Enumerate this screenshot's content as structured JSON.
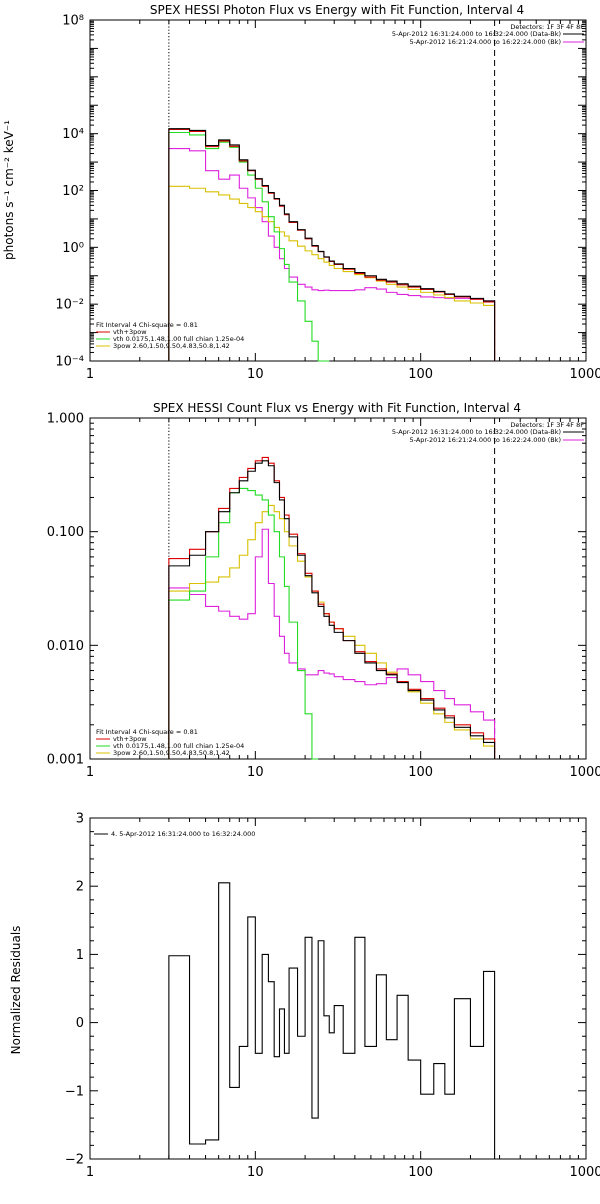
{
  "colors": {
    "total": "#000000",
    "model": "#dd0000",
    "vth": "#22dd22",
    "pow": "#d8c000",
    "bk": "#dd22dd"
  },
  "chart_data": [
    {
      "type": "line",
      "title": "SPEX HESSI Photon Flux vs Energy with Fit Function, Interval 4",
      "ylabel": "photons s⁻¹ cm⁻² keV⁻¹",
      "xlabel": "",
      "xscale": "log",
      "yscale": "log",
      "xlim": [
        1,
        1000
      ],
      "ylim": [
        0.0001,
        100000000
      ],
      "x_ticks": [
        1,
        10,
        100,
        1000
      ],
      "x_tick_labels": [
        "1",
        "10",
        "100",
        "1000"
      ],
      "y_ticks": [
        0.0001,
        0.01,
        1,
        100,
        10000,
        100000000
      ],
      "y_tick_labels": [
        "10⁻⁴",
        "10⁻²",
        "10⁰",
        "10²",
        "10⁴",
        "10⁸"
      ],
      "header_lines": [
        "Detectors: 1F 3F 4F 8F",
        "5-Apr-2012 16:31:24.000 to 16:32:24.000 (Data-Bk)",
        "5-Apr-2012 16:21:24.000 to 16:22:24.000 (Bk)"
      ],
      "legend_lines": [
        "Fit Interval  4    Chi-square = 0.81",
        "vth+3pow",
        "vth  0.0175,1.48,1.00   full chian 1.25e-04",
        "3pow  2.60,1.50,9.50,4.83,50.8,1.42"
      ],
      "vlines": [
        {
          "x": 3,
          "style": "dotted"
        },
        {
          "x": 280,
          "style": "dashed"
        }
      ],
      "edges": [
        3,
        4,
        5,
        6,
        7,
        8,
        9,
        10,
        11,
        12,
        13,
        14,
        15,
        16,
        18,
        20,
        22,
        24,
        26,
        28,
        30,
        34,
        40,
        46,
        54,
        62,
        72,
        84,
        100,
        120,
        140,
        160,
        200,
        240,
        280
      ],
      "series": [
        {
          "key": "model",
          "values": [
            14000,
            12000,
            3500,
            5500,
            3600,
            1100,
            500,
            250,
            140,
            80,
            50,
            28,
            14,
            7.5,
            4,
            2,
            1.1,
            0.7,
            0.45,
            0.32,
            0.25,
            0.17,
            0.12,
            0.09,
            0.07,
            0.06,
            0.048,
            0.04,
            0.033,
            0.027,
            0.022,
            0.018,
            0.015,
            0.012
          ]
        },
        {
          "key": "total",
          "values": [
            15000,
            13000,
            3800,
            6000,
            4000,
            1200,
            520,
            260,
            150,
            85,
            52,
            30,
            15,
            8,
            4.2,
            2.1,
            1.15,
            0.72,
            0.46,
            0.33,
            0.26,
            0.18,
            0.13,
            0.1,
            0.075,
            0.065,
            0.052,
            0.043,
            0.035,
            0.028,
            0.023,
            0.019,
            0.016,
            0.013
          ]
        },
        {
          "key": "vth",
          "values": [
            11000,
            9000,
            3000,
            5000,
            3300,
            1000,
            350,
            120,
            40,
            12,
            3.5,
            0.9,
            0.25,
            0.06,
            0.013,
            0.0025,
            0.0005,
            0.0001,
            2e-05
          ]
        },
        {
          "key": "pow",
          "values": [
            140,
            120,
            90,
            70,
            50,
            35,
            25,
            18,
            12,
            8,
            5,
            3.5,
            2.5,
            1.7,
            1.1,
            0.75,
            0.55,
            0.4,
            0.3,
            0.23,
            0.18,
            0.14,
            0.11,
            0.085,
            0.065,
            0.05,
            0.04,
            0.033,
            0.026,
            0.021,
            0.017,
            0.013,
            0.011,
            0.009
          ]
        },
        {
          "key": "bk",
          "values": [
            3000,
            2500,
            500,
            250,
            350,
            120,
            55,
            25,
            8,
            2.5,
            1,
            0.4,
            0.18,
            0.09,
            0.05,
            0.04,
            0.032,
            0.03,
            0.031,
            0.03,
            0.03,
            0.03,
            0.032,
            0.038,
            0.034,
            0.026,
            0.022,
            0.02,
            0.018,
            0.017,
            0.016,
            0.016,
            0.015,
            0.013
          ]
        }
      ]
    },
    {
      "type": "line",
      "title": "SPEX HESSI Count Flux vs Energy with Fit Function, Interval 4",
      "ylabel": "",
      "xlabel": "",
      "xscale": "log",
      "yscale": "log",
      "xlim": [
        1,
        1000
      ],
      "ylim": [
        0.001,
        1
      ],
      "x_ticks": [
        1,
        10,
        100,
        1000
      ],
      "x_tick_labels": [
        "1",
        "10",
        "100",
        "1000"
      ],
      "y_ticks": [
        0.001,
        0.01,
        0.1,
        1
      ],
      "y_tick_labels": [
        "0.001",
        "0.010",
        "0.100",
        "1.000"
      ],
      "header_lines": [
        "Detectors: 1F 3F 4F 8F",
        "5-Apr-2012 16:31:24.000 to 16:32:24.000 (Data-Bk)",
        "5-Apr-2012 16:21:24.000 to 16:22:24.000 (Bk)"
      ],
      "legend_lines": [
        "Fit Interval  4    Chi-square = 0.81",
        "vth+3pow",
        "vth  0.0175,1.48,1.00   full chian 1.25e-04",
        "3pow  2.60,1.50,9.50,4.83,50.8,1.42"
      ],
      "vlines": [
        {
          "x": 3,
          "style": "dotted"
        },
        {
          "x": 280,
          "style": "dashed"
        }
      ],
      "edges": [
        3,
        4,
        5,
        6,
        7,
        8,
        9,
        10,
        11,
        12,
        13,
        14,
        15,
        16,
        18,
        20,
        22,
        24,
        26,
        28,
        30,
        34,
        40,
        46,
        54,
        62,
        72,
        84,
        100,
        120,
        140,
        160,
        200,
        240,
        280
      ],
      "series": [
        {
          "key": "model",
          "values": [
            0.058,
            0.07,
            0.1,
            0.16,
            0.24,
            0.3,
            0.36,
            0.42,
            0.45,
            0.4,
            0.28,
            0.2,
            0.14,
            0.095,
            0.064,
            0.043,
            0.03,
            0.023,
            0.019,
            0.016,
            0.014,
            0.011,
            0.0088,
            0.0072,
            0.0062,
            0.0056,
            0.0048,
            0.0041,
            0.0034,
            0.0028,
            0.0024,
            0.002,
            0.0017,
            0.0015
          ]
        },
        {
          "key": "total",
          "values": [
            0.05,
            0.062,
            0.1,
            0.15,
            0.22,
            0.28,
            0.34,
            0.4,
            0.42,
            0.38,
            0.27,
            0.19,
            0.13,
            0.09,
            0.062,
            0.041,
            0.029,
            0.022,
            0.018,
            0.015,
            0.013,
            0.011,
            0.0085,
            0.007,
            0.006,
            0.0055,
            0.0047,
            0.004,
            0.0033,
            0.0027,
            0.0023,
            0.0019,
            0.0016,
            0.0014
          ]
        },
        {
          "key": "vth",
          "values": [
            0.025,
            0.03,
            0.06,
            0.12,
            0.22,
            0.24,
            0.23,
            0.21,
            0.19,
            0.14,
            0.1,
            0.06,
            0.033,
            0.016,
            0.006,
            0.0025,
            0.0009
          ]
        },
        {
          "key": "pow",
          "values": [
            0.03,
            0.035,
            0.036,
            0.04,
            0.048,
            0.062,
            0.085,
            0.12,
            0.15,
            0.17,
            0.15,
            0.13,
            0.1,
            0.075,
            0.055,
            0.04,
            0.03,
            0.024,
            0.019,
            0.016,
            0.014,
            0.012,
            0.01,
            0.0085,
            0.007,
            0.0058,
            0.0048,
            0.0039,
            0.0031,
            0.0025,
            0.0021,
            0.0018,
            0.0015,
            0.0013
          ]
        },
        {
          "key": "bk",
          "values": [
            0.032,
            0.028,
            0.022,
            0.02,
            0.018,
            0.017,
            0.019,
            0.06,
            0.105,
            0.035,
            0.018,
            0.012,
            0.0085,
            0.007,
            0.0062,
            0.0055,
            0.0055,
            0.006,
            0.0057,
            0.0056,
            0.0053,
            0.005,
            0.0048,
            0.0045,
            0.0046,
            0.0052,
            0.0062,
            0.0055,
            0.0048,
            0.004,
            0.0034,
            0.003,
            0.0026,
            0.0022
          ]
        }
      ]
    },
    {
      "type": "line",
      "title": "",
      "ylabel": "Normalized Residuals",
      "xlabel": "",
      "xscale": "log",
      "yscale": "linear",
      "xlim": [
        1,
        1000
      ],
      "ylim": [
        -2,
        3
      ],
      "x_ticks": [
        1,
        10,
        100,
        1000
      ],
      "x_tick_labels": [
        "1",
        "10",
        "100",
        "1000"
      ],
      "y_ticks": [
        -2,
        -1,
        0,
        1,
        2,
        3
      ],
      "y_tick_labels": [
        "−2",
        "−1",
        "0",
        "1",
        "2",
        "3"
      ],
      "legend_lines": [
        "4.  5-Apr-2012 16:31:24.000 to 16:32:24.000"
      ],
      "edges": [
        3,
        4,
        5,
        6,
        7,
        8,
        9,
        10,
        11,
        12,
        13,
        14,
        15,
        16,
        18,
        20,
        22,
        24,
        26,
        28,
        30,
        34,
        40,
        46,
        54,
        62,
        72,
        84,
        100,
        120,
        140,
        160,
        200,
        240,
        280
      ],
      "series": [
        {
          "key": "total",
          "values": [
            0.98,
            -1.78,
            -1.72,
            2.05,
            -0.95,
            -0.35,
            1.55,
            -0.45,
            1.0,
            0.6,
            -0.5,
            0.2,
            -0.45,
            0.8,
            -0.2,
            1.25,
            -1.4,
            1.2,
            0.1,
            -0.15,
            0.25,
            -0.45,
            1.25,
            -0.35,
            0.7,
            -0.25,
            0.4,
            -0.55,
            -1.05,
            -0.6,
            -1.05,
            0.35,
            -0.35,
            0.75
          ]
        }
      ]
    }
  ]
}
